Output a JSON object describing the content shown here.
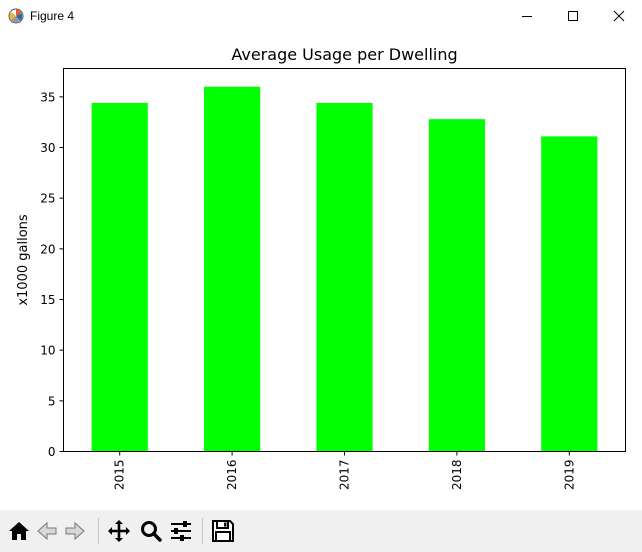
{
  "window": {
    "title": "Figure 4",
    "icon": "matplotlib-icon",
    "controls": [
      "minimize-icon",
      "maximize-icon",
      "close-icon"
    ]
  },
  "toolbar": {
    "buttons": [
      "home-icon",
      "back-icon",
      "forward-icon",
      "pan-icon",
      "zoom-icon",
      "configure-subplots-icon",
      "save-icon"
    ]
  },
  "chart_data": {
    "type": "bar",
    "title": "Average Usage per Dwelling",
    "xlabel": "",
    "ylabel": "x1000 gallons",
    "categories": [
      "2015",
      "2016",
      "2017",
      "2018",
      "2019"
    ],
    "values": [
      34.4,
      36.0,
      34.4,
      32.8,
      31.1
    ],
    "ylim": [
      0,
      37.8
    ],
    "yticks": [
      "0",
      "5",
      "10",
      "15",
      "20",
      "25",
      "30",
      "35"
    ],
    "bar_color": "#00ff00",
    "grid": false,
    "legend": false
  }
}
